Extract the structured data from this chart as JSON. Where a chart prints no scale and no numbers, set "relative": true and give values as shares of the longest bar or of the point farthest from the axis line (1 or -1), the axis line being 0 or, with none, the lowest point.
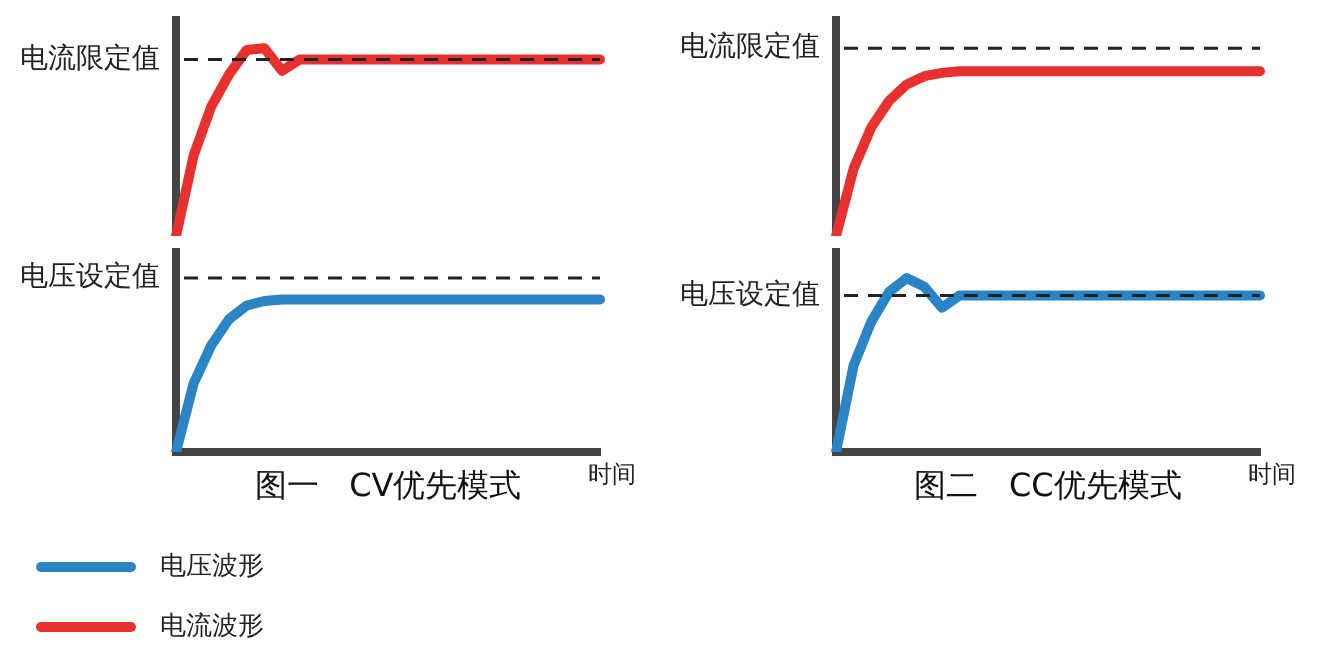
{
  "chart_data": [
    {
      "type": "line",
      "relative": true,
      "legend": "bottom left",
      "grid": false,
      "categories": [
        null,
        null,
        null,
        null,
        null,
        null,
        null,
        null,
        null,
        null,
        null,
        null,
        null,
        null,
        null,
        null,
        null,
        null,
        null,
        null,
        null,
        null,
        null,
        null,
        null
      ],
      "series": [
        {
          "name": "电流波形",
          "color": "#e8302f",
          "values": [
            0,
            0.43,
            0.69,
            0.86,
            0.99,
            1,
            0.88,
            0.94,
            0.94,
            0.94,
            0.94,
            0.94,
            0.94,
            0.94,
            0.94,
            0.94,
            0.94,
            0.94,
            0.94,
            0.94,
            0.94,
            0.94,
            0.94,
            0.94,
            0.94
          ]
        }
      ],
      "ref_lines": [
        {
          "axis": "y",
          "value": 0.94,
          "label": "电流限定值"
        }
      ]
    },
    {
      "type": "line",
      "relative": true,
      "xlabel": "时间",
      "annotations": [
        "图一   CV优先模式"
      ],
      "legend": "bottom left",
      "grid": false,
      "categories": [
        null,
        null,
        null,
        null,
        null,
        null,
        null,
        null,
        null,
        null,
        null,
        null,
        null,
        null,
        null,
        null,
        null,
        null,
        null,
        null,
        null,
        null,
        null,
        null,
        null
      ],
      "series": [
        {
          "name": "电压波形",
          "color": "#2a84c6",
          "values": [
            0,
            0.45,
            0.7,
            0.87,
            0.96,
            0.99,
            1,
            1,
            1,
            1,
            1,
            1,
            1,
            1,
            1,
            1,
            1,
            1,
            1,
            1,
            1,
            1,
            1,
            1,
            1
          ]
        }
      ],
      "ref_lines": [
        {
          "axis": "y",
          "value": 1.14,
          "label": "电压设定值"
        }
      ]
    },
    {
      "type": "line",
      "relative": true,
      "grid": false,
      "categories": [
        null,
        null,
        null,
        null,
        null,
        null,
        null,
        null,
        null,
        null,
        null,
        null,
        null,
        null,
        null,
        null,
        null,
        null,
        null,
        null,
        null,
        null,
        null,
        null,
        null
      ],
      "series": [
        {
          "color": "#e8302f",
          "values": [
            0,
            0.41,
            0.66,
            0.82,
            0.92,
            0.97,
            0.99,
            1,
            1,
            1,
            1,
            1,
            1,
            1,
            1,
            1,
            1,
            1,
            1,
            1,
            1,
            1,
            1,
            1,
            1
          ]
        }
      ],
      "ref_lines": [
        {
          "axis": "y",
          "value": 1.14,
          "label": "电流限定值"
        }
      ]
    },
    {
      "type": "line",
      "relative": true,
      "xlabel": "时间",
      "annotations": [
        "图二   CC优先模式"
      ],
      "grid": false,
      "categories": [
        null,
        null,
        null,
        null,
        null,
        null,
        null,
        null,
        null,
        null,
        null,
        null,
        null,
        null,
        null,
        null,
        null,
        null,
        null,
        null,
        null,
        null,
        null,
        null,
        null
      ],
      "series": [
        {
          "color": "#2a84c6",
          "values": [
            0,
            0.5,
            0.75,
            0.92,
            1,
            0.95,
            0.83,
            0.9,
            0.9,
            0.9,
            0.9,
            0.9,
            0.9,
            0.9,
            0.9,
            0.9,
            0.9,
            0.9,
            0.9,
            0.9,
            0.9,
            0.9,
            0.9,
            0.9,
            0.9
          ]
        }
      ],
      "ref_lines": [
        {
          "axis": "y",
          "value": 0.9,
          "label": "电压设定值"
        }
      ]
    }
  ]
}
